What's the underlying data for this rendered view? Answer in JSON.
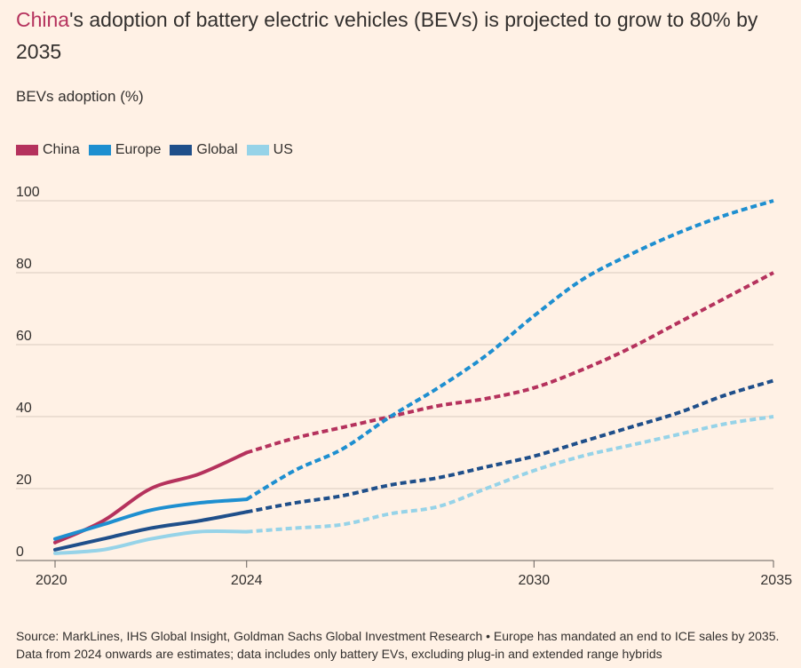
{
  "title": {
    "highlight": "China",
    "rest": "'s adoption of battery electric vehicles (BEVs) is projected to grow to 80% by 2035"
  },
  "subtitle": "BEVs adoption (%)",
  "source": "Source: MarkLines, IHS Global Insight, Goldman Sachs Global Investment Research • Europe has mandated an end to ICE sales by 2035. Data from 2024 onwards are estimates; data includes only battery EVs, excluding plug-in and extended range hybrids",
  "chart_data": {
    "type": "line",
    "title": "China's adoption of battery electric vehicles (BEVs) is projected to grow to 80% by 2035",
    "ylabel": "BEVs adoption (%)",
    "xlabel": "",
    "xlim": [
      2020,
      2035
    ],
    "ylim": [
      0,
      100
    ],
    "xticks": [
      2020,
      2024,
      2030,
      2035
    ],
    "yticks": [
      0,
      20,
      40,
      60,
      80,
      100
    ],
    "grid": true,
    "legend": "top-left",
    "estimate_from": 2024,
    "x": [
      2020,
      2021,
      2022,
      2023,
      2024,
      2025,
      2026,
      2027,
      2028,
      2029,
      2030,
      2031,
      2032,
      2033,
      2034,
      2035
    ],
    "series": [
      {
        "name": "China",
        "color": "#b5325d",
        "values": [
          5,
          11,
          20,
          24,
          30,
          34,
          37,
          40,
          43,
          45,
          48,
          53,
          59,
          66,
          73,
          80
        ]
      },
      {
        "name": "Europe",
        "color": "#1e8fd0",
        "values": [
          6,
          10,
          14,
          16,
          17,
          25,
          31,
          40,
          48,
          57,
          68,
          78,
          85,
          91,
          96,
          100
        ]
      },
      {
        "name": "Global",
        "color": "#1f4f8a",
        "values": [
          3,
          6,
          9,
          11,
          13.5,
          16,
          18,
          21,
          23,
          26,
          29,
          33,
          37,
          41,
          46,
          50
        ]
      },
      {
        "name": "US",
        "color": "#96d3e8",
        "values": [
          2,
          3,
          6,
          8,
          8,
          9,
          10,
          13,
          15,
          20,
          25,
          29,
          32,
          35,
          38,
          40
        ]
      }
    ]
  }
}
